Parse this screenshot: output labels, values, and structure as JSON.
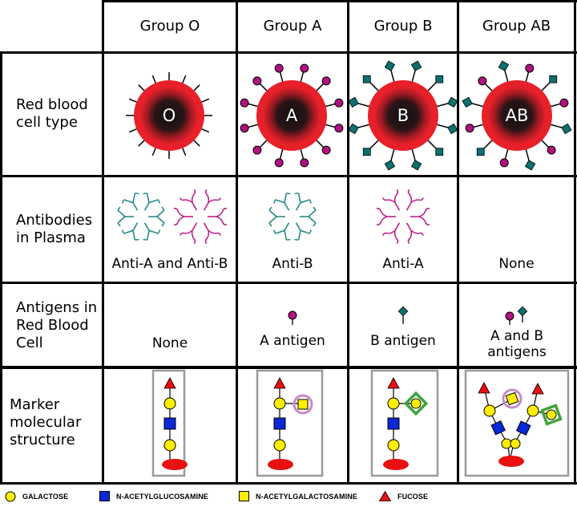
{
  "columns": [
    "Group O",
    "Group A",
    "Group B",
    "Group AB"
  ],
  "rows": {
    "cell_type": "Red blood cell type",
    "antibodies": "Antibodies in Plasma",
    "antigens": "Antigens in Red Blood Cell",
    "marker": "Marker molecular structure"
  },
  "cell_letters": [
    "O",
    "A",
    "B",
    "AB"
  ],
  "antibody_labels": [
    "Anti-A and Anti-B",
    "Anti-B",
    "Anti-A",
    "None"
  ],
  "antigen_labels": [
    "None",
    "A antigen",
    "B antigen",
    "A and B antigens"
  ],
  "legend": {
    "galactose": "GALACTOSE",
    "glcnac": "N-ACETYLGLUCOSAMINE",
    "galnac": "N-ACETYLGALACTOSAMINE",
    "fucose": "FUCOSE"
  },
  "colors": {
    "cell_red": "#e8202a",
    "cell_core": "#1a1a1a",
    "antigen_a": "#b0137f",
    "antigen_b": "#0d7070",
    "antibody_teal": "#2a8a8a",
    "antibody_magenta": "#c0208a",
    "galactose": "#ffee00",
    "glcnac": "#0a28d8",
    "fucose": "#e81010",
    "halo_a": "#c78ac4",
    "halo_b": "#3fa33a"
  },
  "icons": [
    "red-blood-cell-icon",
    "antibody-icon",
    "antigen-icon",
    "glycan-structure-icon"
  ]
}
